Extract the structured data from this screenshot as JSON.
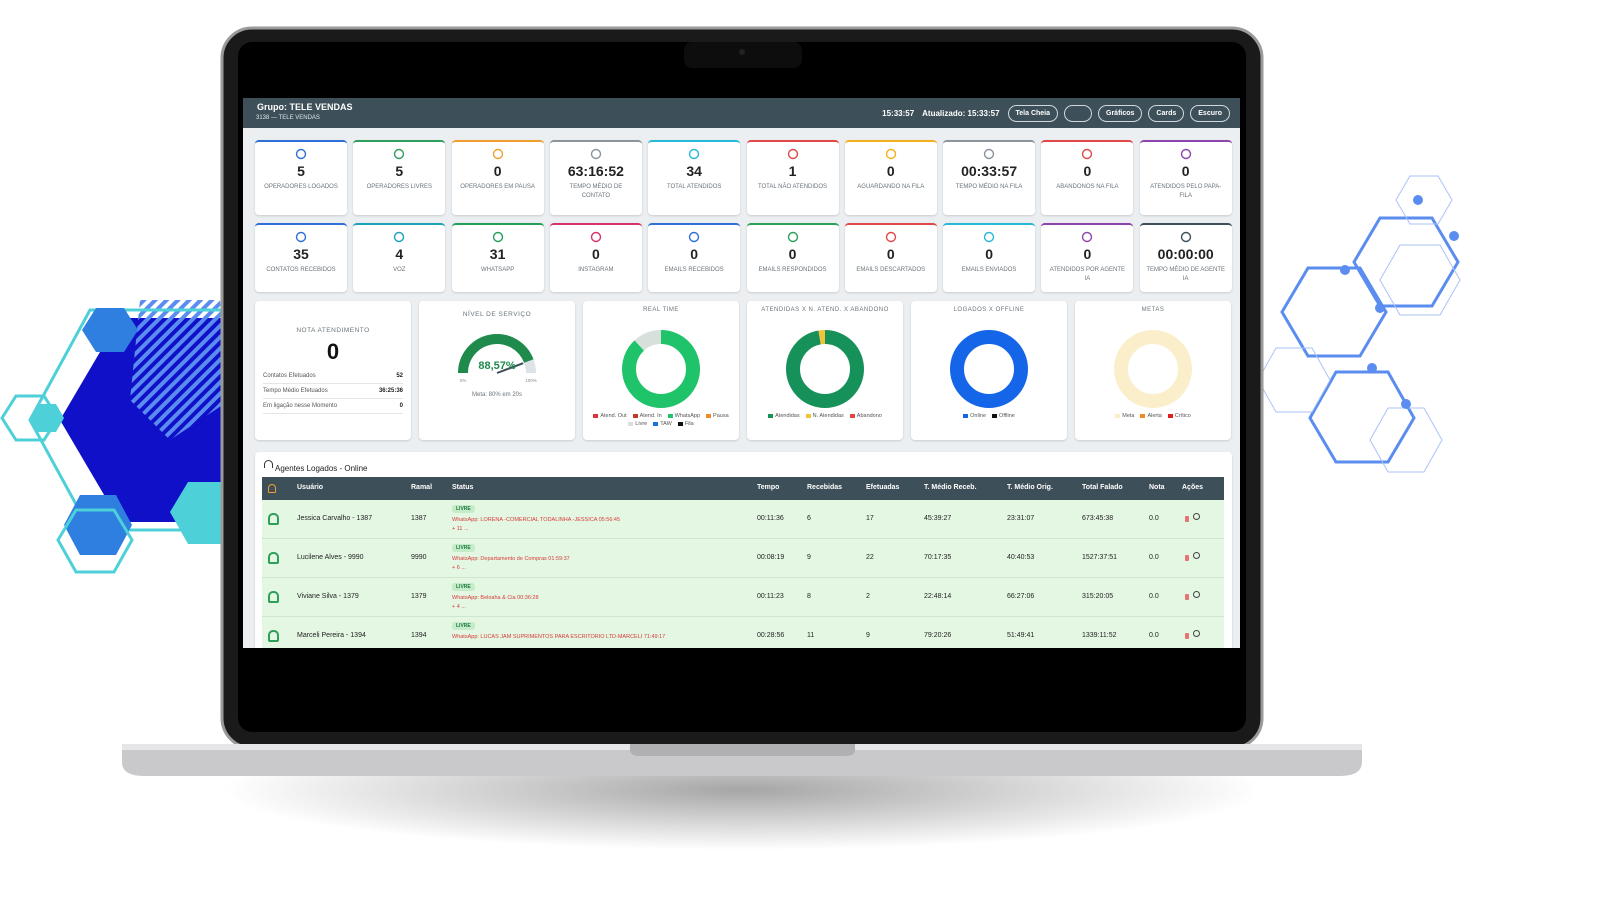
{
  "header": {
    "title": "Grupo: TELE VENDAS",
    "subtitle": "3138 — TELE VENDAS",
    "time": "15:33:57",
    "updated": "Atualizado: 15:33:57",
    "buttons": [
      "Tela Cheia",
      "Gráficos",
      "Cards",
      "Escuro"
    ]
  },
  "cards": [
    [
      {
        "value": "5",
        "label": "OPERADORES LOGADOS",
        "color": "#2f6fd6"
      },
      {
        "value": "5",
        "label": "OPERADORES LIVRES",
        "color": "#2e9e5b"
      },
      {
        "value": "0",
        "label": "OPERADORES EM PAUSA",
        "color": "#f0a030"
      },
      {
        "value": "63:16:52",
        "label": "TEMPO MÉDIO DE CONTATO",
        "color": "#8a949c"
      },
      {
        "value": "34",
        "label": "TOTAL ATENDIDOS",
        "color": "#28b8d8"
      },
      {
        "value": "1",
        "label": "TOTAL NÃO ATENDIDOS",
        "color": "#e04848"
      },
      {
        "value": "0",
        "label": "AGUARDANDO NA FILA",
        "color": "#f0b020"
      },
      {
        "value": "00:33:57",
        "label": "TEMPO MÉDIO NA FILA",
        "color": "#8a949c"
      },
      {
        "value": "0",
        "label": "ABANDONOS NA FILA",
        "color": "#e04848"
      },
      {
        "value": "0",
        "label": "ATENDIDOS PELO PAPA-FILA",
        "color": "#8e44ad"
      }
    ],
    [
      {
        "value": "35",
        "label": "CONTATOS RECEBIDOS",
        "color": "#2f6fd6"
      },
      {
        "value": "4",
        "label": "VOZ",
        "color": "#1aa3b8"
      },
      {
        "value": "31",
        "label": "WHATSAPP",
        "color": "#25a05a"
      },
      {
        "value": "0",
        "label": "INSTAGRAM",
        "color": "#d6336c"
      },
      {
        "value": "0",
        "label": "EMAILS RECEBIDOS",
        "color": "#2f6fd6"
      },
      {
        "value": "0",
        "label": "EMAILS RESPONDIDOS",
        "color": "#2e9e5b"
      },
      {
        "value": "0",
        "label": "EMAILS DESCARTADOS",
        "color": "#e04848"
      },
      {
        "value": "0",
        "label": "EMAILS ENVIADOS",
        "color": "#28b8d8"
      },
      {
        "value": "0",
        "label": "ATENDIDOS POR AGENTE IA",
        "color": "#8e44ad"
      },
      {
        "value": "00:00:00",
        "label": "TEMPO MÉDIO DE AGENTE IA",
        "color": "#3d4f58"
      }
    ]
  ],
  "nota": {
    "title": "NOTA ATENDIMENTO",
    "value": "0",
    "rows": [
      [
        "Contatos Efetuados",
        "52"
      ],
      [
        "Tempo Médio Efetuados",
        "36:25:36"
      ],
      [
        "Em ligação nesse Momento",
        "0"
      ]
    ]
  },
  "gauge": {
    "title": "NÍVEL DE SERVIÇO",
    "value": 88.57,
    "value_label": "88,57%",
    "range": [
      {
        "value": 0,
        "label": "0%"
      },
      {
        "value": 100,
        "label": "100%"
      }
    ],
    "note": "Meta: 80% em 20s",
    "color": "#1e8a4c"
  },
  "charts": [
    {
      "type": "donut",
      "title": "REAL TIME",
      "series": [
        {
          "name": "Atend. Out",
          "color": "#d9383a",
          "value": 0
        },
        {
          "name": "Atend. In",
          "color": "#c0392b",
          "value": 0
        },
        {
          "name": "WhatsApp",
          "color": "#1fc46a",
          "value": 88
        },
        {
          "name": "Pausa",
          "color": "#f08a24",
          "value": 0
        },
        {
          "name": "Livre",
          "color": "#d8e0dc",
          "value": 12
        },
        {
          "name": "TAW",
          "color": "#1f6fe0",
          "value": 0
        },
        {
          "name": "Fila",
          "color": "#111111",
          "value": 0
        }
      ]
    },
    {
      "type": "donut",
      "title": "ATENDIDAS X N. ATEND. X ABANDONO",
      "series": [
        {
          "name": "Atendidas",
          "color": "#16915a",
          "value": 34
        },
        {
          "name": "N. Atendidas",
          "color": "#f2c23a",
          "value": 1
        },
        {
          "name": "Abandono",
          "color": "#e04848",
          "value": 0
        }
      ]
    },
    {
      "type": "donut",
      "title": "LOGADOS X OFFLINE",
      "series": [
        {
          "name": "Online",
          "color": "#1565e8",
          "value": 5
        },
        {
          "name": "Offline",
          "color": "#111111",
          "value": 0
        }
      ]
    },
    {
      "type": "donut",
      "title": "METAS",
      "series": [
        {
          "name": "Meta",
          "color": "#fbeecb",
          "value": 100
        },
        {
          "name": "Alerta",
          "color": "#f08a24",
          "value": 0
        },
        {
          "name": "Crítico",
          "color": "#e02020",
          "value": 0
        }
      ]
    }
  ],
  "table": {
    "title": "Agentes Logados - Online",
    "headers": [
      "Usuário",
      "Ramal",
      "Status",
      "Tempo",
      "Recebidas",
      "Efetuadas",
      "T. Médio Receb.",
      "T. Médio Orig.",
      "Total Falado",
      "Nota",
      "Ações"
    ],
    "rows": [
      {
        "user": "Jessica Carvalho - 1387",
        "ramal": "1387",
        "status": "LIVRE",
        "detail": "WhatsApp: LORENA -COMERCIAL TODALINHA -JESSICA 05:56:45",
        "extra": "+ 11 ...",
        "cells": [
          "00:11:36",
          "6",
          "17",
          "45:39:27",
          "23:31:07",
          "673:45:38",
          "0.0"
        ]
      },
      {
        "user": "Lucilene Alves - 9990",
        "ramal": "9990",
        "status": "LIVRE",
        "detail": "WhatsApp: Departamento de Compras 01:59:37",
        "extra": "+ 6 ...",
        "cells": [
          "00:08:19",
          "9",
          "22",
          "70:17:35",
          "40:40:53",
          "1527:37:51",
          "0.0"
        ]
      },
      {
        "user": "Viviane Silva - 1379",
        "ramal": "1379",
        "status": "LIVRE",
        "detail": "WhatsApp: Beloaha & Cia 00:36:28",
        "extra": "+ 4 ...",
        "cells": [
          "00:11:23",
          "8",
          "2",
          "22:48:14",
          "66:27:06",
          "315:20:05",
          "0.0"
        ]
      },
      {
        "user": "Marceli Pereira - 1394",
        "ramal": "1394",
        "status": "LIVRE",
        "detail": "WhatsApp: LUCAS JAM SUPRIMENTOS PARA ESCRITORIO LTD-MARCELI 71:49:17",
        "cells": [
          "00:28:56",
          "11",
          "9",
          "79:20:26",
          "51:49:41",
          "1339:11:52",
          "0.0"
        ]
      }
    ]
  }
}
